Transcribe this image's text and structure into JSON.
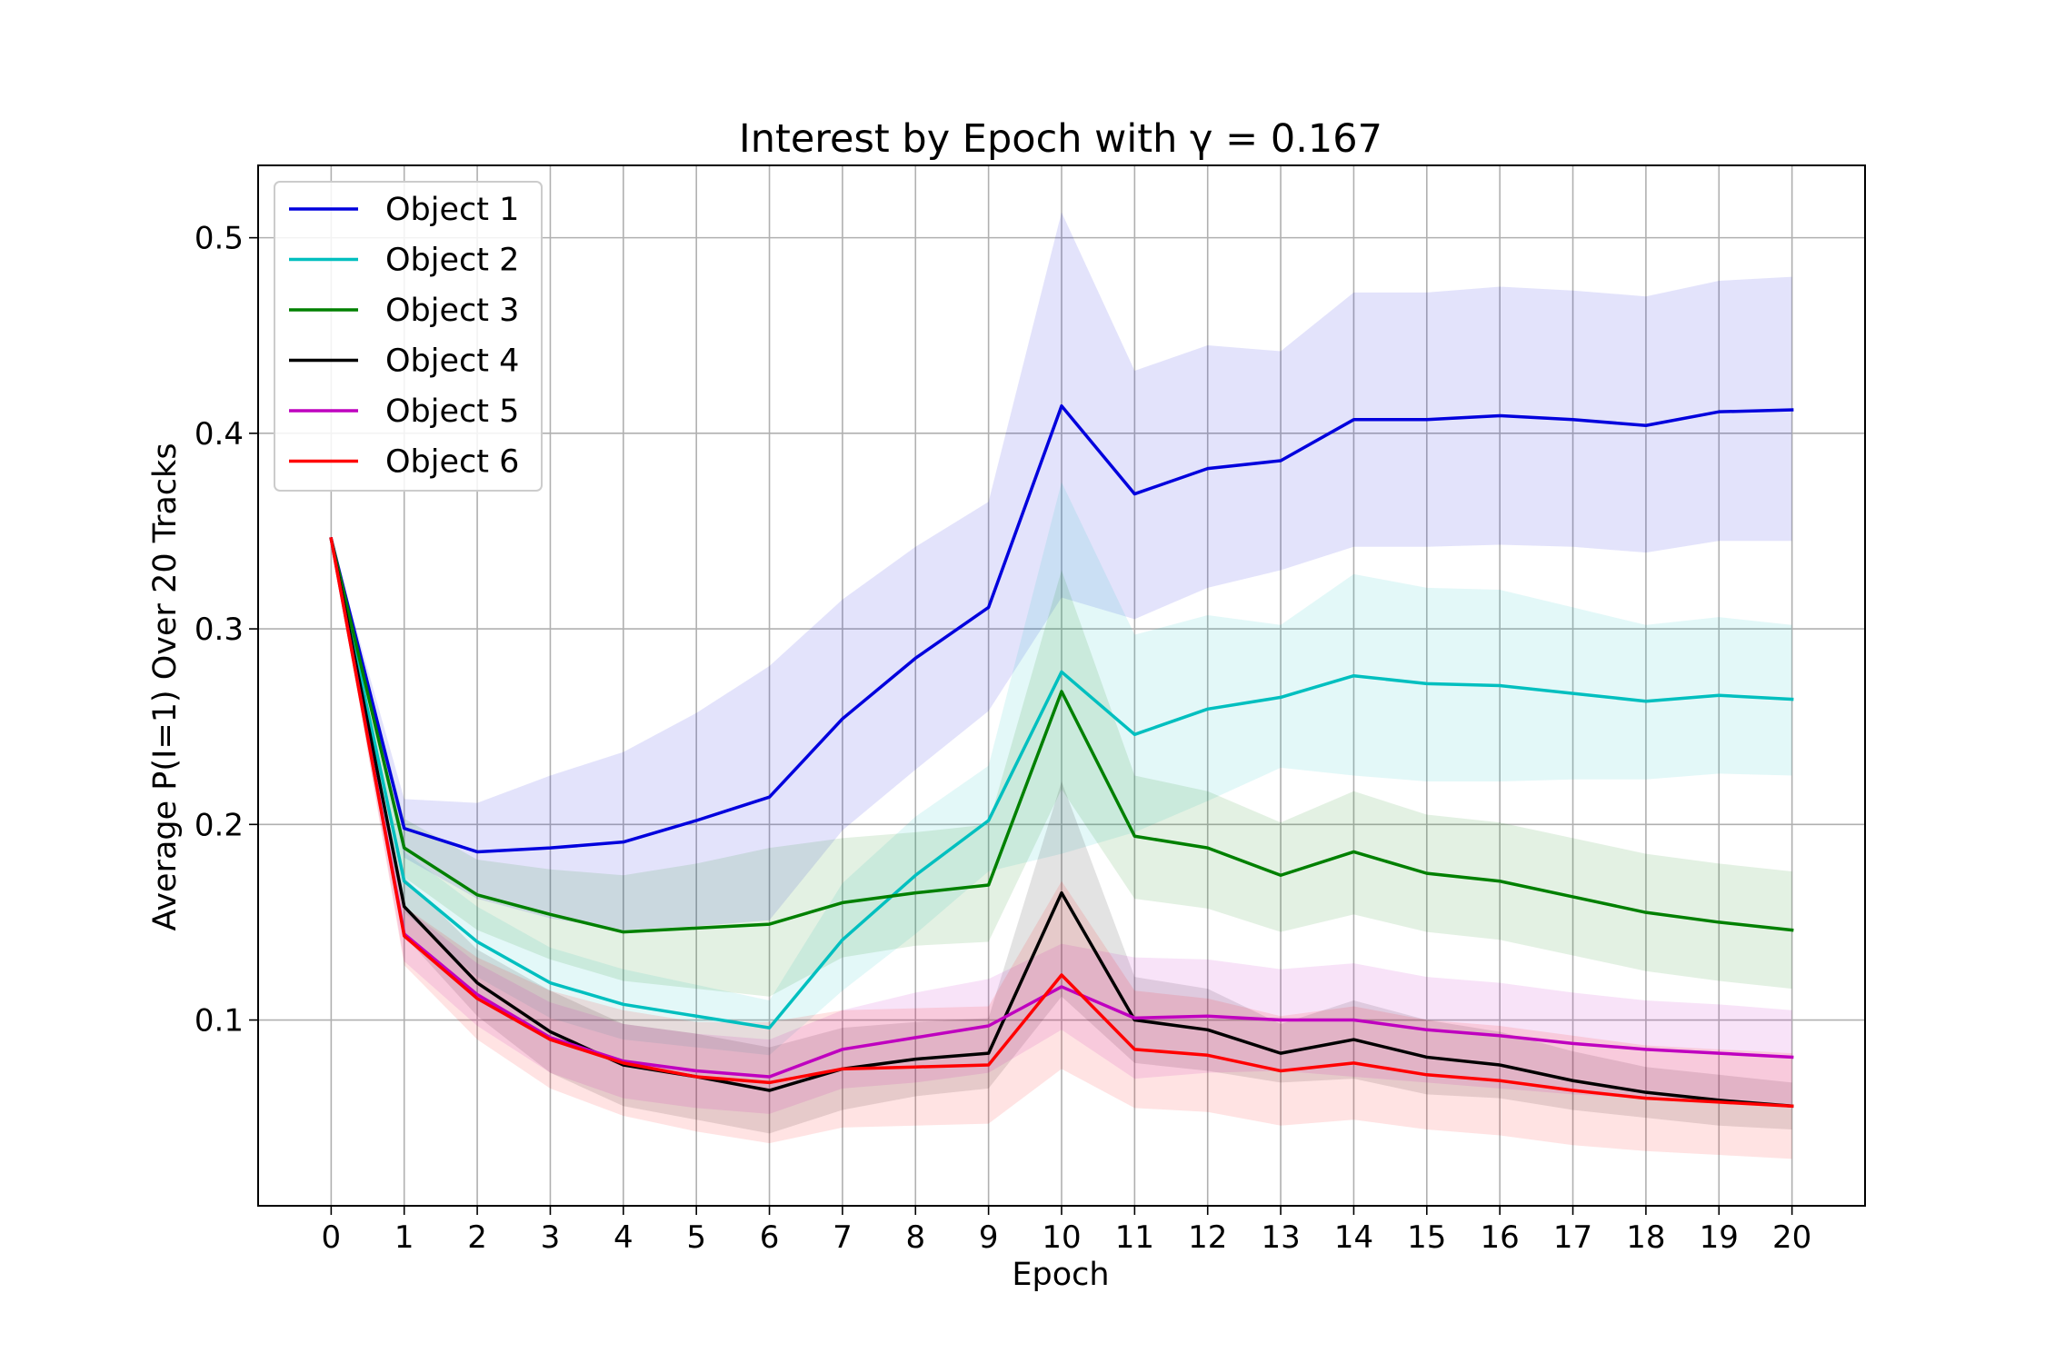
{
  "chart_data": {
    "type": "line",
    "title": "Interest by Epoch with γ = 0.167",
    "xlabel": "Epoch",
    "ylabel": "Average P(I=1) Over 20 Tracks",
    "x": [
      0,
      1,
      2,
      3,
      4,
      5,
      6,
      7,
      8,
      9,
      10,
      11,
      12,
      13,
      14,
      15,
      16,
      17,
      18,
      19,
      20
    ],
    "xlim": [
      -1,
      21
    ],
    "ylim": [
      0.005,
      0.537
    ],
    "xticks": [
      "0",
      "1",
      "2",
      "3",
      "4",
      "5",
      "6",
      "7",
      "8",
      "9",
      "10",
      "11",
      "12",
      "13",
      "14",
      "15",
      "16",
      "17",
      "18",
      "19",
      "20"
    ],
    "yticks": [
      "0.1",
      "0.2",
      "0.3",
      "0.4",
      "0.5"
    ],
    "ytick_values": [
      0.1,
      0.2,
      0.3,
      0.4,
      0.5
    ],
    "grid": true,
    "legend_position": "top-left",
    "series": [
      {
        "name": "Object 1",
        "color": "#0000dd",
        "values": [
          0.346,
          0.198,
          0.186,
          0.188,
          0.191,
          0.202,
          0.214,
          0.254,
          0.285,
          0.311,
          0.414,
          0.369,
          0.382,
          0.386,
          0.407,
          0.407,
          0.409,
          0.407,
          0.404,
          0.411,
          0.412
        ],
        "lower": [
          0.346,
          0.183,
          0.162,
          0.152,
          0.146,
          0.148,
          0.151,
          0.197,
          0.228,
          0.258,
          0.316,
          0.305,
          0.321,
          0.33,
          0.342,
          0.342,
          0.343,
          0.342,
          0.339,
          0.345,
          0.345
        ],
        "upper": [
          0.346,
          0.213,
          0.211,
          0.225,
          0.237,
          0.257,
          0.281,
          0.315,
          0.342,
          0.365,
          0.513,
          0.432,
          0.445,
          0.442,
          0.472,
          0.472,
          0.475,
          0.473,
          0.47,
          0.478,
          0.48
        ]
      },
      {
        "name": "Object 2",
        "color": "#00bfbf",
        "values": [
          0.346,
          0.171,
          0.14,
          0.119,
          0.108,
          0.102,
          0.096,
          0.141,
          0.174,
          0.202,
          0.278,
          0.246,
          0.259,
          0.265,
          0.276,
          0.272,
          0.271,
          0.267,
          0.263,
          0.266,
          0.264
        ],
        "lower": [
          0.346,
          0.155,
          0.122,
          0.101,
          0.09,
          0.086,
          0.082,
          0.115,
          0.144,
          0.176,
          0.185,
          0.196,
          0.212,
          0.229,
          0.225,
          0.222,
          0.222,
          0.223,
          0.223,
          0.226,
          0.225
        ],
        "upper": [
          0.346,
          0.186,
          0.158,
          0.137,
          0.126,
          0.118,
          0.11,
          0.17,
          0.204,
          0.23,
          0.375,
          0.297,
          0.307,
          0.302,
          0.328,
          0.321,
          0.32,
          0.311,
          0.302,
          0.306,
          0.302
        ]
      },
      {
        "name": "Object 3",
        "color": "#008000",
        "values": [
          0.346,
          0.188,
          0.164,
          0.154,
          0.145,
          0.147,
          0.149,
          0.16,
          0.165,
          0.169,
          0.268,
          0.194,
          0.188,
          0.174,
          0.186,
          0.175,
          0.171,
          0.163,
          0.155,
          0.15,
          0.146
        ],
        "lower": [
          0.346,
          0.173,
          0.146,
          0.131,
          0.12,
          0.116,
          0.112,
          0.132,
          0.138,
          0.14,
          0.218,
          0.162,
          0.157,
          0.145,
          0.154,
          0.145,
          0.141,
          0.133,
          0.125,
          0.12,
          0.116
        ],
        "upper": [
          0.346,
          0.203,
          0.182,
          0.177,
          0.174,
          0.18,
          0.188,
          0.193,
          0.196,
          0.2,
          0.33,
          0.225,
          0.217,
          0.201,
          0.217,
          0.205,
          0.201,
          0.193,
          0.185,
          0.18,
          0.176
        ]
      },
      {
        "name": "Object 4",
        "color": "#000000",
        "values": [
          0.346,
          0.158,
          0.119,
          0.094,
          0.077,
          0.071,
          0.064,
          0.075,
          0.08,
          0.083,
          0.165,
          0.1,
          0.095,
          0.083,
          0.09,
          0.081,
          0.077,
          0.069,
          0.063,
          0.059,
          0.056
        ],
        "lower": [
          0.346,
          0.143,
          0.102,
          0.073,
          0.056,
          0.049,
          0.042,
          0.054,
          0.061,
          0.065,
          0.112,
          0.078,
          0.074,
          0.068,
          0.07,
          0.062,
          0.06,
          0.054,
          0.05,
          0.046,
          0.044
        ],
        "upper": [
          0.346,
          0.173,
          0.136,
          0.115,
          0.098,
          0.093,
          0.086,
          0.096,
          0.099,
          0.101,
          0.222,
          0.122,
          0.116,
          0.098,
          0.11,
          0.1,
          0.094,
          0.084,
          0.076,
          0.072,
          0.068
        ]
      },
      {
        "name": "Object 5",
        "color": "#bf00bf",
        "values": [
          0.346,
          0.144,
          0.113,
          0.091,
          0.079,
          0.074,
          0.071,
          0.085,
          0.091,
          0.097,
          0.117,
          0.101,
          0.102,
          0.1,
          0.1,
          0.095,
          0.092,
          0.088,
          0.085,
          0.083,
          0.081
        ],
        "lower": [
          0.346,
          0.13,
          0.097,
          0.073,
          0.06,
          0.055,
          0.052,
          0.065,
          0.068,
          0.073,
          0.095,
          0.07,
          0.073,
          0.074,
          0.071,
          0.068,
          0.065,
          0.062,
          0.06,
          0.058,
          0.057
        ],
        "upper": [
          0.346,
          0.158,
          0.129,
          0.109,
          0.098,
          0.093,
          0.09,
          0.105,
          0.114,
          0.121,
          0.139,
          0.132,
          0.131,
          0.126,
          0.129,
          0.122,
          0.119,
          0.114,
          0.11,
          0.108,
          0.105
        ]
      },
      {
        "name": "Object 6",
        "color": "#ff0000",
        "values": [
          0.346,
          0.143,
          0.111,
          0.09,
          0.078,
          0.071,
          0.068,
          0.075,
          0.076,
          0.077,
          0.123,
          0.085,
          0.082,
          0.074,
          0.078,
          0.072,
          0.069,
          0.064,
          0.06,
          0.058,
          0.056
        ],
        "lower": [
          0.346,
          0.128,
          0.09,
          0.065,
          0.051,
          0.043,
          0.037,
          0.045,
          0.046,
          0.047,
          0.075,
          0.055,
          0.053,
          0.046,
          0.049,
          0.044,
          0.041,
          0.036,
          0.033,
          0.031,
          0.029
        ],
        "upper": [
          0.346,
          0.158,
          0.132,
          0.115,
          0.105,
          0.099,
          0.099,
          0.105,
          0.106,
          0.107,
          0.171,
          0.115,
          0.111,
          0.102,
          0.107,
          0.1,
          0.097,
          0.092,
          0.087,
          0.085,
          0.083
        ]
      }
    ]
  }
}
